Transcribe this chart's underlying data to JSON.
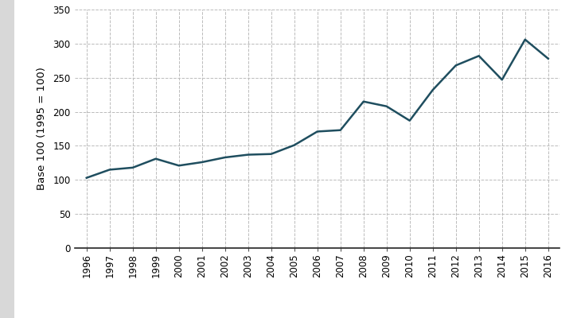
{
  "years": [
    1996,
    1997,
    1998,
    1999,
    2000,
    2001,
    2002,
    2003,
    2004,
    2005,
    2006,
    2007,
    2008,
    2009,
    2010,
    2011,
    2012,
    2013,
    2014,
    2015,
    2016
  ],
  "values": [
    103,
    115,
    118,
    131,
    121,
    126,
    133,
    137,
    138,
    151,
    171,
    173,
    215,
    208,
    187,
    232,
    268,
    282,
    247,
    306,
    278
  ],
  "line_color": "#1f4e5f",
  "line_width": 1.8,
  "ylabel": "Base 100 (1995 = 100)",
  "ylim": [
    0,
    350
  ],
  "yticks": [
    0,
    50,
    100,
    150,
    200,
    250,
    300,
    350
  ],
  "grid_color": "#bbbbbb",
  "grid_style": "--",
  "bg_color": "#ffffff",
  "plot_bg_color": "#ffffff",
  "sidebar_color": "#d8d8d8",
  "tick_label_fontsize": 8.5,
  "ylabel_fontsize": 9.5,
  "bottom_spine_color": "#222222"
}
